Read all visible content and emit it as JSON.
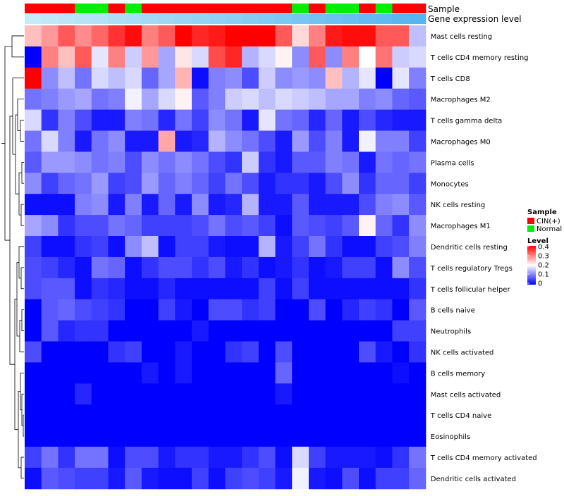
{
  "chart_data": {
    "type": "heatmap",
    "title": "",
    "annotations": {
      "sample_label": "Sample",
      "gene_label": "Gene expression level"
    },
    "samples": [
      "CIN(+)",
      "CIN(+)",
      "CIN(+)",
      "Normal",
      "Normal",
      "CIN(+)",
      "Normal",
      "CIN(+)",
      "CIN(+)",
      "CIN(+)",
      "CIN(+)",
      "CIN(+)",
      "CIN(+)",
      "CIN(+)",
      "CIN(+)",
      "CIN(+)",
      "Normal",
      "CIN(+)",
      "Normal",
      "Normal",
      "CIN(+)",
      "Normal",
      "CIN(+)",
      "CIN(+)"
    ],
    "gene_expression_level": [
      0.02,
      0.04,
      0.06,
      0.08,
      0.1,
      0.12,
      0.14,
      0.16,
      0.18,
      0.2,
      0.22,
      0.24,
      0.26,
      0.28,
      0.3,
      0.32,
      0.34,
      0.36,
      0.38,
      0.4,
      0.42,
      0.44,
      0.46,
      0.48
    ],
    "rows": [
      "Mast cells resting",
      "T cells CD4 memory resting",
      "T cells CD8",
      "Macrophages M2",
      "T cells gamma delta",
      "Macrophages M0",
      "Plasma cells",
      "Monocytes",
      "NK cells resting",
      "Macrophages M1",
      "Dendritic cells resting",
      "T cells regulatory  Tregs",
      "T cells follicular helper",
      "B cells naive",
      "Neutrophils",
      "NK cells activated",
      "B cells memory",
      "Mast cells activated",
      "T cells CD4 naive",
      "Eosinophils",
      "T cells CD4 memory activated",
      "Dendritic cells activated"
    ],
    "values": [
      [
        0.25,
        0.28,
        0.33,
        0.29,
        0.32,
        0.36,
        0.39,
        0.3,
        0.33,
        0.4,
        0.37,
        0.38,
        0.4,
        0.4,
        0.4,
        0.33,
        0.23,
        0.3,
        0.38,
        0.39,
        0.39,
        0.33,
        0.33,
        0.15
      ],
      [
        0.0,
        0.3,
        0.25,
        0.33,
        0.18,
        0.3,
        0.16,
        0.28,
        0.13,
        0.22,
        0.17,
        0.34,
        0.37,
        0.14,
        0.17,
        0.21,
        0.11,
        0.33,
        0.11,
        0.3,
        0.2,
        0.31,
        0.16,
        0.17
      ],
      [
        0.4,
        0.11,
        0.15,
        0.09,
        0.17,
        0.15,
        0.17,
        0.08,
        0.13,
        0.26,
        0.01,
        0.1,
        0.11,
        0.06,
        0.16,
        0.11,
        0.12,
        0.11,
        0.25,
        0.14,
        0.18,
        0.0,
        0.18,
        0.1
      ],
      [
        0.09,
        0.1,
        0.12,
        0.13,
        0.09,
        0.1,
        0.19,
        0.13,
        0.17,
        0.21,
        0.07,
        0.1,
        0.16,
        0.17,
        0.15,
        0.17,
        0.16,
        0.15,
        0.13,
        0.13,
        0.1,
        0.11,
        0.08,
        0.07
      ],
      [
        0.17,
        0.04,
        0.1,
        0.06,
        0.02,
        0.02,
        0.1,
        0.09,
        0.03,
        0.09,
        0.05,
        0.11,
        0.09,
        0.02,
        0.18,
        0.09,
        0.08,
        0.03,
        0.08,
        0.02,
        0.06,
        0.03,
        0.02,
        0.02
      ],
      [
        0.09,
        0.17,
        0.1,
        0.02,
        0.09,
        0.11,
        0.02,
        0.02,
        0.27,
        0.02,
        0.03,
        0.14,
        0.11,
        0.09,
        0.06,
        0.02,
        0.12,
        0.06,
        0.1,
        0.02,
        0.19,
        0.1,
        0.1,
        0.05
      ],
      [
        0.07,
        0.12,
        0.12,
        0.11,
        0.09,
        0.1,
        0.06,
        0.11,
        0.09,
        0.11,
        0.09,
        0.06,
        0.04,
        0.16,
        0.04,
        0.02,
        0.07,
        0.07,
        0.1,
        0.09,
        0.02,
        0.09,
        0.08,
        0.09
      ],
      [
        0.11,
        0.05,
        0.08,
        0.09,
        0.12,
        0.05,
        0.06,
        0.12,
        0.08,
        0.1,
        0.08,
        0.05,
        0.09,
        0.06,
        0.02,
        0.04,
        0.04,
        0.02,
        0.06,
        0.11,
        0.04,
        0.08,
        0.08,
        0.05
      ],
      [
        0.01,
        0.01,
        0.01,
        0.1,
        0.11,
        0.02,
        0.1,
        0.02,
        0.08,
        0.02,
        0.11,
        0.02,
        0.03,
        0.14,
        0.02,
        0.02,
        0.07,
        0.02,
        0.02,
        0.02,
        0.06,
        0.1,
        0.11,
        0.07
      ],
      [
        0.13,
        0.11,
        0.04,
        0.06,
        0.06,
        0.09,
        0.08,
        0.05,
        0.05,
        0.05,
        0.06,
        0.09,
        0.06,
        0.07,
        0.05,
        0.01,
        0.07,
        0.06,
        0.05,
        0.07,
        0.21,
        0.08,
        0.04,
        0.11
      ],
      [
        0.05,
        0.01,
        0.01,
        0.04,
        0.05,
        0.01,
        0.11,
        0.15,
        0.01,
        0.05,
        0.05,
        0.02,
        0.01,
        0.01,
        0.14,
        0.02,
        0.05,
        0.09,
        0.04,
        0.01,
        0.01,
        0.05,
        0.06,
        0.1
      ],
      [
        0.06,
        0.05,
        0.03,
        0.01,
        0.09,
        0.08,
        0.01,
        0.04,
        0.06,
        0.06,
        0.04,
        0.06,
        0.02,
        0.04,
        0.01,
        0.02,
        0.04,
        0.01,
        0.02,
        0.05,
        0.05,
        0.01,
        0.11,
        0.06
      ],
      [
        0.06,
        0.07,
        0.07,
        0.01,
        0.04,
        0.03,
        0.01,
        0.01,
        0.03,
        0.01,
        0.01,
        0.01,
        0.01,
        0.01,
        0.05,
        0.01,
        0.05,
        0.01,
        0.01,
        0.01,
        0.01,
        0.01,
        0.01,
        0.04
      ],
      [
        0.0,
        0.07,
        0.08,
        0.06,
        0.05,
        0.04,
        0.0,
        0.0,
        0.05,
        0.02,
        0.0,
        0.06,
        0.06,
        0.04,
        0.05,
        0.0,
        0.0,
        0.06,
        0.0,
        0.03,
        0.05,
        0.04,
        0.0,
        0.07
      ],
      [
        0.0,
        0.07,
        0.03,
        0.04,
        0.04,
        0.0,
        0.0,
        0.0,
        0.0,
        0.0,
        0.02,
        0.0,
        0.0,
        0.0,
        0.0,
        0.0,
        0.0,
        0.0,
        0.0,
        0.0,
        0.0,
        0.0,
        0.05,
        0.05
      ],
      [
        0.06,
        0.0,
        0.0,
        0.0,
        0.0,
        0.04,
        0.05,
        0.0,
        0.0,
        0.02,
        0.0,
        0.0,
        0.04,
        0.05,
        0.0,
        0.06,
        0.0,
        0.0,
        0.0,
        0.0,
        0.06,
        0.02,
        0.0,
        0.04
      ],
      [
        0.0,
        0.0,
        0.0,
        0.0,
        0.0,
        0.0,
        0.0,
        0.02,
        0.0,
        0.02,
        0.0,
        0.0,
        0.0,
        0.0,
        0.0,
        0.08,
        0.0,
        0.0,
        0.0,
        0.0,
        0.0,
        0.0,
        0.01,
        0.0
      ],
      [
        0.0,
        0.0,
        0.0,
        0.03,
        0.0,
        0.0,
        0.0,
        0.0,
        0.0,
        0.0,
        0.0,
        0.0,
        0.0,
        0.0,
        0.0,
        0.02,
        0.0,
        0.0,
        0.0,
        0.0,
        0.0,
        0.0,
        0.0,
        0.0
      ],
      [
        0.0,
        0.0,
        0.0,
        0.0,
        0.0,
        0.0,
        0.0,
        0.0,
        0.0,
        0.0,
        0.0,
        0.0,
        0.0,
        0.0,
        0.0,
        0.0,
        0.0,
        0.0,
        0.0,
        0.0,
        0.0,
        0.0,
        0.0,
        0.0
      ],
      [
        0.0,
        0.0,
        0.0,
        0.0,
        0.0,
        0.0,
        0.0,
        0.0,
        0.0,
        0.0,
        0.0,
        0.0,
        0.0,
        0.0,
        0.0,
        0.0,
        0.0,
        0.0,
        0.0,
        0.0,
        0.0,
        0.0,
        0.0,
        0.0
      ],
      [
        0.05,
        0.09,
        0.04,
        0.09,
        0.09,
        0.01,
        0.06,
        0.06,
        0.02,
        0.04,
        0.04,
        0.02,
        0.02,
        0.04,
        0.06,
        0.01,
        0.17,
        0.05,
        0.02,
        0.02,
        0.02,
        0.01,
        0.04,
        0.09
      ],
      [
        0.01,
        0.07,
        0.06,
        0.05,
        0.05,
        0.02,
        0.07,
        0.02,
        0.01,
        0.01,
        0.05,
        0.01,
        0.05,
        0.06,
        0.05,
        0.02,
        0.19,
        0.02,
        0.01,
        0.06,
        0.01,
        0.05,
        0.05,
        0.08
      ]
    ],
    "value_range": [
      0,
      0.4
    ],
    "legend": {
      "sample_title": "Sample",
      "sample_entries": [
        {
          "label": "CIN(+)",
          "color": "#ff0000"
        },
        {
          "label": "Normal",
          "color": "#00ee00"
        }
      ],
      "level_title": "Level",
      "level_ticks": [
        "0.4",
        "0.3",
        "0.2",
        "0.1",
        "0"
      ],
      "placement": "right"
    },
    "colors": {
      "low": "#0000ff",
      "mid": "#ffffff",
      "high": "#ff0000",
      "gene_low": "#c6eaf8",
      "gene_high": "#56b4f0"
    }
  }
}
